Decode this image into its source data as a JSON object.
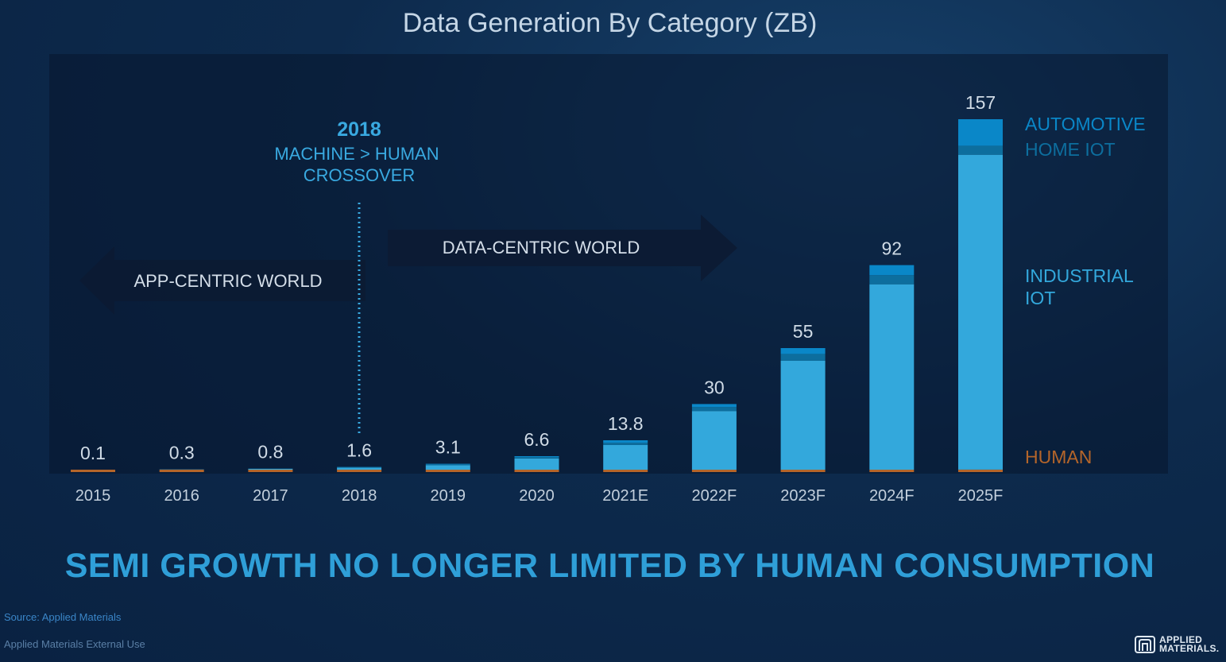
{
  "title": "Data Generation By Category (ZB)",
  "headline": "SEMI GROWTH NO LONGER LIMITED BY HUMAN CONSUMPTION",
  "footer": {
    "source": "Source: Applied Materials",
    "usage": "Applied Materials External Use"
  },
  "logo": {
    "line1": "APPLIED",
    "line2": "MATERIALS."
  },
  "annotations": {
    "crossover_year": "2018",
    "crossover_line1": "MACHINE > HUMAN",
    "crossover_line2": "CROSSOVER",
    "app_centric": "APP-CENTRIC WORLD",
    "data_centric": "DATA-CENTRIC WORLD"
  },
  "colors": {
    "automotive": "#0a87c8",
    "home_iot": "#0d6e9e",
    "industrial_iot": "#33a8dc",
    "human": "#b4652a",
    "crossover_text": "#39a9e0",
    "value_label": "#d0dbe6",
    "tick_label": "#c2cfdc"
  },
  "chart_data": {
    "type": "bar",
    "stacked": true,
    "categories": [
      "2015",
      "2016",
      "2017",
      "2018",
      "2019",
      "2020",
      "2021E",
      "2022F",
      "2023F",
      "2024F",
      "2025F"
    ],
    "totals": [
      0.1,
      0.3,
      0.8,
      1.6,
      3.1,
      6.6,
      13.8,
      30,
      55,
      92,
      157
    ],
    "series": [
      {
        "key": "human",
        "name": "HUMAN",
        "values": [
          0.1,
          0.2,
          0.3,
          0.4,
          0.5,
          0.6,
          0.7,
          0.8,
          0.9,
          1.0,
          1.1
        ]
      },
      {
        "key": "industrial_iot",
        "name": "INDUSTRIAL IOT",
        "values": [
          0.0,
          0.1,
          0.4,
          0.9,
          2.0,
          5.0,
          11.0,
          26.1,
          48.5,
          82.5,
          140.1
        ]
      },
      {
        "key": "home_iot",
        "name": "HOME IOT",
        "values": [
          0.0,
          0.0,
          0.05,
          0.15,
          0.3,
          0.5,
          1.0,
          1.8,
          3.0,
          4.0,
          4.0
        ]
      },
      {
        "key": "automotive",
        "name": "AUTOMOTIVE",
        "values": [
          0.0,
          0.0,
          0.05,
          0.15,
          0.3,
          0.5,
          1.1,
          1.3,
          2.6,
          4.5,
          11.8
        ]
      }
    ],
    "legend": [
      "AUTOMOTIVE",
      "HOME IOT",
      "INDUSTRIAL IOT",
      "HUMAN"
    ],
    "legend_position": "right",
    "ylim": [
      0,
      157
    ],
    "grid": false,
    "crossover_category": "2018"
  }
}
